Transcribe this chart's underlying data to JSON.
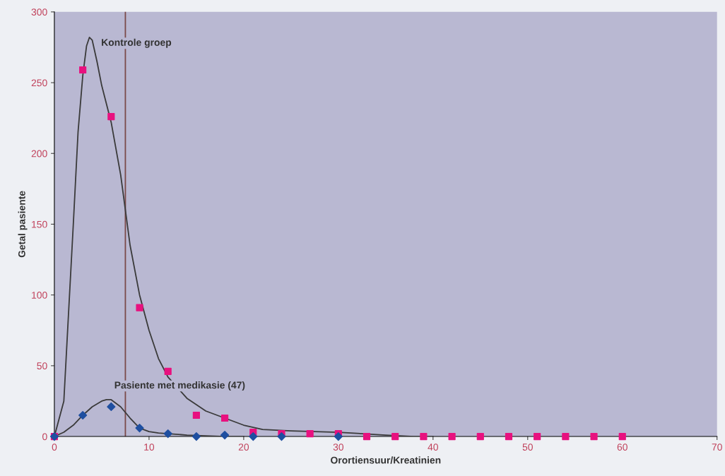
{
  "chart_data": {
    "type": "scatter",
    "xlabel": "Orortiensuur/Kreatinien",
    "ylabel": "Getal pasiente",
    "xlim": [
      0,
      70
    ],
    "ylim": [
      0,
      300
    ],
    "xticks": [
      0,
      10,
      20,
      30,
      40,
      50,
      60,
      70
    ],
    "yticks": [
      0,
      50,
      100,
      150,
      200,
      250,
      300
    ],
    "grid": false,
    "legend": false,
    "series": [
      {
        "type": "line",
        "color": "#3a3a3a",
        "marker": "none",
        "line_style": "solid",
        "x": [
          0,
          1,
          2,
          2.5,
          3,
          3.4,
          3.7,
          4,
          4.5,
          5,
          6,
          7,
          7.5,
          8,
          9,
          10,
          11,
          12,
          14,
          16,
          18,
          20,
          22,
          25,
          30,
          35,
          38,
          40
        ],
        "values": [
          0,
          25,
          150,
          215,
          255,
          276,
          282,
          280,
          265,
          248,
          222,
          185,
          160,
          135,
          100,
          75,
          55,
          42,
          27,
          18,
          13,
          8,
          5,
          4,
          3,
          1,
          0,
          0
        ]
      },
      {
        "type": "line",
        "color": "#3a3a3a",
        "marker": "none",
        "line_style": "solid",
        "x": [
          0,
          1,
          2,
          3,
          4,
          5,
          5.5,
          6,
          7,
          8,
          9,
          10,
          11,
          12,
          14,
          16,
          18,
          20
        ],
        "values": [
          0,
          3,
          8,
          15,
          21,
          25,
          26,
          26,
          21,
          13,
          6,
          3.5,
          2.5,
          2,
          1,
          0.5,
          0,
          0
        ]
      },
      {
        "color": "#e8117f",
        "marker": "square",
        "x": [
          0,
          3,
          6,
          9,
          12,
          15,
          18,
          21,
          24,
          27,
          30,
          33,
          36,
          39,
          42,
          45,
          48,
          51,
          54,
          57,
          60
        ],
        "values": [
          0,
          259,
          226,
          91,
          46,
          15,
          13,
          3,
          2,
          2,
          2,
          0,
          0,
          0,
          0,
          0,
          0,
          0,
          0,
          0,
          0
        ]
      },
      {
        "color": "#1f4fa0",
        "marker": "diamond",
        "x": [
          0,
          3,
          6,
          9,
          12,
          15,
          18,
          21,
          24,
          30
        ],
        "values": [
          0,
          15,
          21,
          6,
          2,
          0,
          1,
          0,
          0,
          0
        ]
      }
    ],
    "ref_lines": [
      {
        "axis": "x",
        "value": 7.5,
        "color": "#7a4a4a",
        "line_style": "solid"
      }
    ],
    "annotations": [
      "Kontrole groep",
      "Pasiente met medikasie (47)"
    ]
  }
}
